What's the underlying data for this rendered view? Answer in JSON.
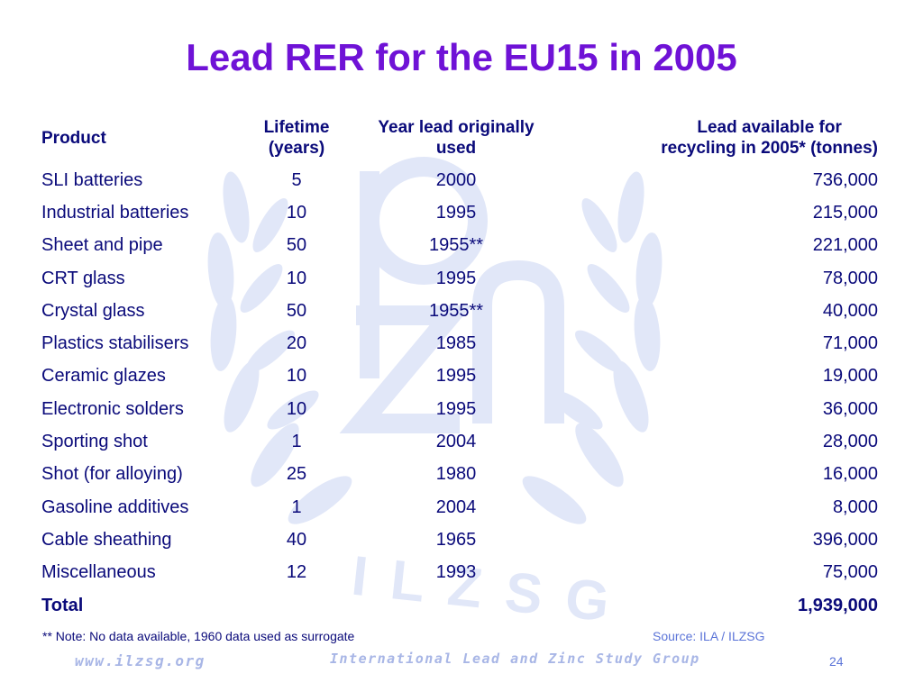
{
  "slide": {
    "title": "Lead RER for the EU15 in 2005",
    "watermark_text": "ILZSG",
    "note": "** Note:  No data available, 1960 data used as surrogate",
    "source": "Source: ILA / ILZSG",
    "footer_url": "www.ilzsg.org",
    "footer_org": "International Lead and Zinc Study Group",
    "page_number": "24"
  },
  "table": {
    "headers": {
      "product": "Product",
      "lifetime_line1": "Lifetime",
      "lifetime_line2": "(years)",
      "year_line1": "Year lead originally",
      "year_line2": "used",
      "lead_line1": "Lead available for",
      "lead_line2": "recycling in 2005* (tonnes)"
    },
    "rows": [
      {
        "product": "SLI batteries",
        "lifetime": "5",
        "year": "2000",
        "lead": "736,000"
      },
      {
        "product": "Industrial batteries",
        "lifetime": "10",
        "year": "1995",
        "lead": "215,000"
      },
      {
        "product": "Sheet and pipe",
        "lifetime": "50",
        "year": "1955**",
        "lead": "221,000"
      },
      {
        "product": "CRT glass",
        "lifetime": "10",
        "year": "1995",
        "lead": "78,000"
      },
      {
        "product": "Crystal glass",
        "lifetime": "50",
        "year": "1955**",
        "lead": "40,000"
      },
      {
        "product": "Plastics stabilisers",
        "lifetime": "20",
        "year": "1985",
        "lead": "71,000"
      },
      {
        "product": "Ceramic glazes",
        "lifetime": "10",
        "year": "1995",
        "lead": "19,000"
      },
      {
        "product": "Electronic solders",
        "lifetime": "10",
        "year": "1995",
        "lead": "36,000"
      },
      {
        "product": "Sporting shot",
        "lifetime": "1",
        "year": "2004",
        "lead": "28,000"
      },
      {
        "product": "Shot (for alloying)",
        "lifetime": "25",
        "year": "1980",
        "lead": "16,000"
      },
      {
        "product": "Gasoline additives",
        "lifetime": "1",
        "year": "2004",
        "lead": "8,000"
      },
      {
        "product": "Cable sheathing",
        "lifetime": "40",
        "year": "1965",
        "lead": "396,000"
      },
      {
        "product": "Miscellaneous",
        "lifetime": "12",
        "year": "1993",
        "lead": "75,000"
      }
    ],
    "total": {
      "label": "Total",
      "lead": "1,939,000"
    }
  },
  "colors": {
    "title": "#6f12d6",
    "body_text": "#0a0a7a",
    "source_text": "#5b74d8",
    "watermark": "#c9d3f2"
  }
}
